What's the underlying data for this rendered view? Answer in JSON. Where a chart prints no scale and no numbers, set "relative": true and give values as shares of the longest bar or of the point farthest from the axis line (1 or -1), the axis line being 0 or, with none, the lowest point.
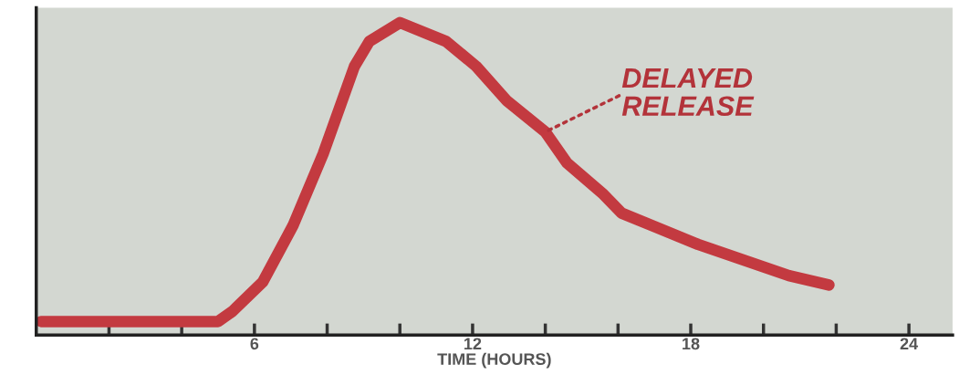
{
  "chart_data": {
    "type": "line",
    "relative": true,
    "xlabel": "TIME (HOURS)",
    "xlim": [
      0,
      25.2
    ],
    "xticks": [
      {
        "value": 2,
        "label": null
      },
      {
        "value": 4,
        "label": null
      },
      6,
      {
        "value": 8,
        "label": null
      },
      {
        "value": 10,
        "label": null
      },
      12,
      {
        "value": 14,
        "label": null
      },
      {
        "value": 16,
        "label": null
      },
      18,
      {
        "value": 20,
        "label": null
      },
      {
        "value": 22,
        "label": null
      },
      24
    ],
    "series": [
      {
        "color": "#c33a40",
        "x": [
          0.13,
          5.0,
          5.4,
          6.23,
          7.06,
          7.89,
          8.75,
          9.16,
          10.0,
          11.27,
          12.1,
          12.94,
          14.0,
          14.6,
          15.6,
          16.1,
          18.2,
          20.7,
          21.8
        ],
        "values": [
          0.043,
          0.043,
          0.076,
          0.17,
          0.35,
          0.58,
          0.86,
          0.94,
          1.0,
          0.94,
          0.86,
          0.75,
          0.65,
          0.55,
          0.45,
          0.39,
          0.29,
          0.19,
          0.16
        ]
      }
    ],
    "annotations": [
      {
        "text": "DELAYED\nRELEASE",
        "x": 14.0,
        "y": 0.65
      }
    ]
  }
}
